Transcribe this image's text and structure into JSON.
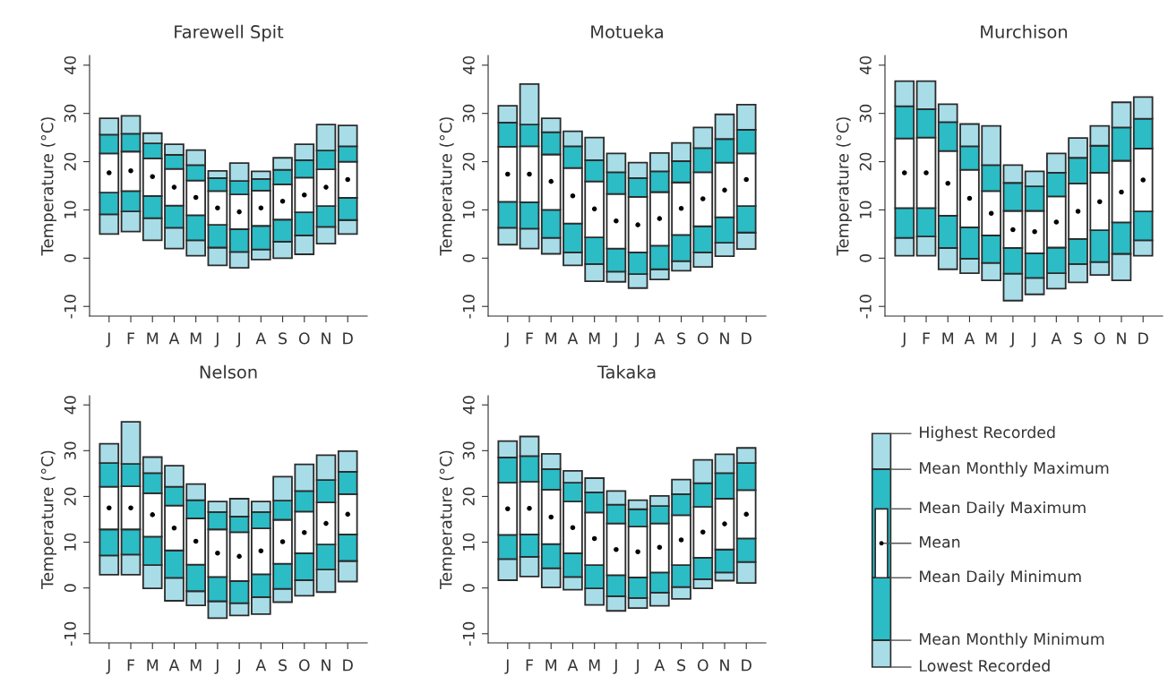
{
  "chart_data": [
    {
      "type": "bar",
      "title": "Farewell Spit",
      "ylabel": "Temperature (°C)",
      "categories": [
        "J",
        "F",
        "M",
        "A",
        "M",
        "J",
        "J",
        "A",
        "S",
        "O",
        "N",
        "D"
      ],
      "ylim": [
        -12,
        42
      ],
      "yticks": [
        -10,
        0,
        10,
        20,
        30,
        40
      ],
      "grid": false,
      "series": [
        {
          "color": "#a8dde8",
          "base": [
            5.0,
            5.5,
            3.7,
            2.0,
            0.5,
            -1.5,
            -2.0,
            -0.3,
            0.0,
            0.8,
            3.0,
            5.0
          ],
          "values": [
            4.1,
            4.2,
            4.6,
            4.3,
            3.2,
            3.7,
            3.3,
            2.1,
            3.4,
            3.9,
            3.5,
            2.9
          ]
        },
        {
          "color": "#2bbcc6",
          "base": [
            9.1,
            9.7,
            8.3,
            6.3,
            3.7,
            2.2,
            1.3,
            1.8,
            3.4,
            4.7,
            6.5,
            7.9
          ],
          "values": [
            4.5,
            4.2,
            4.6,
            4.6,
            5.2,
            4.7,
            4.7,
            4.9,
            4.6,
            4.8,
            4.3,
            4.6
          ]
        },
        {
          "color": "#ffffff",
          "base": [
            13.6,
            13.9,
            12.9,
            10.9,
            8.9,
            6.9,
            6.0,
            6.7,
            8.0,
            9.5,
            10.8,
            12.5
          ],
          "values": [
            8.1,
            8.2,
            7.8,
            7.6,
            7.2,
            7.0,
            7.2,
            7.3,
            7.3,
            7.2,
            7.6,
            7.5
          ]
        },
        {
          "color": "#2bbcc6",
          "base": [
            21.7,
            22.1,
            20.7,
            18.5,
            16.1,
            13.9,
            13.2,
            14.0,
            15.3,
            16.7,
            18.4,
            20.0
          ],
          "values": [
            3.9,
            3.7,
            3.1,
            2.9,
            3.2,
            2.7,
            2.8,
            2.4,
            3.0,
            3.6,
            3.9,
            3.2
          ]
        },
        {
          "color": "#a8dde8",
          "base": [
            25.6,
            25.8,
            23.8,
            21.4,
            19.3,
            16.6,
            16.0,
            16.4,
            18.3,
            20.3,
            22.3,
            23.2
          ],
          "values": [
            3.4,
            3.7,
            2.1,
            2.2,
            3.1,
            1.5,
            3.7,
            1.6,
            2.5,
            3.3,
            5.4,
            4.3
          ]
        },
        {
          "type": "scatter",
          "marker": "circle",
          "color": "#000000",
          "values": [
            17.7,
            18.1,
            16.9,
            14.7,
            12.6,
            10.4,
            9.6,
            10.4,
            11.8,
            13.1,
            14.7,
            16.3
          ]
        }
      ]
    },
    {
      "type": "bar",
      "title": "Motueka",
      "ylabel": "Temperature (°C)",
      "categories": [
        "J",
        "F",
        "M",
        "A",
        "M",
        "J",
        "J",
        "A",
        "S",
        "O",
        "N",
        "D"
      ],
      "ylim": [
        -12,
        42
      ],
      "yticks": [
        -10,
        0,
        10,
        20,
        30,
        40
      ],
      "grid": false,
      "series": [
        {
          "color": "#a8dde8",
          "base": [
            2.8,
            2.0,
            0.9,
            -1.5,
            -4.8,
            -4.9,
            -6.2,
            -4.4,
            -2.6,
            -1.8,
            0.4,
            1.9
          ],
          "values": [
            3.5,
            4.1,
            3.3,
            2.7,
            3.6,
            2.1,
            2.9,
            2.1,
            2.0,
            3.0,
            2.8,
            3.4
          ]
        },
        {
          "color": "#2bbcc6",
          "base": [
            6.3,
            6.1,
            4.2,
            1.2,
            -1.2,
            -2.8,
            -3.3,
            -2.3,
            -0.6,
            1.2,
            3.2,
            5.3
          ],
          "values": [
            5.4,
            5.5,
            5.8,
            6.0,
            5.5,
            4.8,
            4.5,
            4.9,
            5.4,
            5.4,
            5.3,
            5.5
          ]
        },
        {
          "color": "#ffffff",
          "base": [
            11.7,
            11.6,
            10.0,
            7.2,
            4.3,
            2.0,
            1.2,
            2.6,
            4.8,
            6.6,
            8.5,
            10.8
          ],
          "values": [
            11.4,
            11.6,
            11.5,
            11.5,
            11.6,
            11.3,
            11.5,
            11.1,
            10.9,
            11.2,
            11.3,
            10.9
          ]
        },
        {
          "color": "#2bbcc6",
          "base": [
            23.1,
            23.2,
            21.5,
            18.7,
            15.9,
            13.3,
            12.7,
            13.7,
            15.7,
            17.8,
            19.8,
            21.7
          ],
          "values": [
            5.0,
            4.5,
            4.6,
            4.5,
            4.4,
            4.5,
            3.9,
            4.3,
            4.4,
            5.0,
            4.9,
            4.9
          ]
        },
        {
          "color": "#a8dde8",
          "base": [
            28.1,
            27.7,
            26.1,
            23.2,
            20.3,
            17.8,
            16.6,
            18.0,
            20.1,
            22.8,
            24.7,
            26.6
          ],
          "values": [
            3.5,
            8.4,
            2.9,
            3.1,
            4.7,
            3.9,
            3.2,
            3.8,
            3.8,
            4.3,
            5.1,
            5.2
          ]
        },
        {
          "type": "scatter",
          "marker": "circle",
          "color": "#000000",
          "values": [
            17.4,
            17.4,
            15.9,
            12.9,
            10.2,
            7.7,
            6.9,
            8.2,
            10.3,
            12.3,
            14.1,
            16.3
          ]
        }
      ]
    },
    {
      "type": "bar",
      "title": "Murchison",
      "ylabel": "Temperature (°C)",
      "categories": [
        "J",
        "F",
        "M",
        "A",
        "M",
        "J",
        "J",
        "A",
        "S",
        "O",
        "N",
        "D"
      ],
      "ylim": [
        -12,
        42
      ],
      "yticks": [
        -10,
        0,
        10,
        20,
        30,
        40
      ],
      "grid": false,
      "series": [
        {
          "color": "#a8dde8",
          "base": [
            0.5,
            0.5,
            -2.3,
            -3.1,
            -4.6,
            -8.8,
            -7.5,
            -6.3,
            -5.0,
            -3.5,
            -4.6,
            0.5
          ],
          "values": [
            3.7,
            4.0,
            4.4,
            3.0,
            3.6,
            5.6,
            3.4,
            3.2,
            3.8,
            2.7,
            5.5,
            3.2
          ]
        },
        {
          "color": "#2bbcc6",
          "base": [
            4.2,
            4.5,
            2.1,
            -0.1,
            -1.0,
            -3.2,
            -4.1,
            -3.1,
            -1.2,
            -0.8,
            0.9,
            3.7
          ],
          "values": [
            6.2,
            5.9,
            6.7,
            6.5,
            5.7,
            5.3,
            5.1,
            5.3,
            5.2,
            6.6,
            6.5,
            6.0
          ]
        },
        {
          "color": "#ffffff",
          "base": [
            10.4,
            10.4,
            8.8,
            6.4,
            4.7,
            2.1,
            1.0,
            2.2,
            4.0,
            5.8,
            7.4,
            9.7
          ],
          "values": [
            14.4,
            14.6,
            13.4,
            11.9,
            9.2,
            7.7,
            8.8,
            10.6,
            11.5,
            11.9,
            12.8,
            13.0
          ]
        },
        {
          "color": "#2bbcc6",
          "base": [
            24.8,
            25.0,
            22.2,
            18.3,
            13.9,
            9.8,
            9.8,
            12.8,
            15.5,
            17.7,
            20.2,
            22.7
          ],
          "values": [
            6.7,
            5.9,
            6.0,
            4.9,
            5.4,
            5.8,
            5.1,
            4.9,
            5.3,
            5.6,
            6.9,
            6.2
          ]
        },
        {
          "color": "#a8dde8",
          "base": [
            31.5,
            30.9,
            28.2,
            23.2,
            19.3,
            15.6,
            14.9,
            17.7,
            20.8,
            23.3,
            27.1,
            28.9
          ],
          "values": [
            5.2,
            5.8,
            3.7,
            4.6,
            8.1,
            3.7,
            3.1,
            4.0,
            4.1,
            4.1,
            5.2,
            4.5
          ]
        },
        {
          "type": "scatter",
          "marker": "circle",
          "color": "#000000",
          "values": [
            17.7,
            17.7,
            15.5,
            12.4,
            9.3,
            5.9,
            5.5,
            7.5,
            9.7,
            11.7,
            13.7,
            16.2
          ]
        }
      ]
    },
    {
      "type": "bar",
      "title": "Nelson",
      "ylabel": "Temperature (°C)",
      "categories": [
        "J",
        "F",
        "M",
        "A",
        "M",
        "J",
        "J",
        "A",
        "S",
        "O",
        "N",
        "D"
      ],
      "ylim": [
        -12,
        42
      ],
      "yticks": [
        -10,
        0,
        10,
        20,
        30,
        40
      ],
      "grid": false,
      "series": [
        {
          "color": "#a8dde8",
          "base": [
            2.9,
            2.9,
            -0.1,
            -2.8,
            -3.8,
            -6.6,
            -6.0,
            -5.7,
            -3.1,
            -1.7,
            -0.9,
            1.4
          ],
          "values": [
            4.2,
            4.4,
            5.1,
            5.0,
            3.1,
            3.7,
            2.7,
            3.7,
            2.9,
            3.4,
            4.9,
            4.5
          ]
        },
        {
          "color": "#2bbcc6",
          "base": [
            7.1,
            7.3,
            5.0,
            2.2,
            -0.7,
            -2.9,
            -3.3,
            -2.0,
            -0.2,
            1.7,
            4.0,
            5.9
          ],
          "values": [
            5.7,
            5.5,
            6.2,
            6.0,
            5.8,
            5.3,
            4.8,
            5.0,
            5.5,
            5.9,
            5.5,
            5.8
          ]
        },
        {
          "color": "#ffffff",
          "base": [
            12.8,
            12.8,
            11.2,
            8.2,
            5.1,
            2.4,
            1.5,
            3.0,
            5.3,
            7.6,
            9.5,
            11.7
          ],
          "values": [
            9.3,
            9.4,
            9.5,
            9.8,
            10.1,
            10.4,
            10.7,
            10.0,
            9.6,
            9.1,
            9.2,
            8.8
          ]
        },
        {
          "color": "#2bbcc6",
          "base": [
            22.1,
            22.2,
            20.7,
            18.0,
            15.2,
            12.8,
            12.2,
            13.0,
            14.9,
            16.7,
            18.7,
            20.5
          ],
          "values": [
            5.2,
            4.9,
            4.4,
            4.1,
            4.0,
            3.8,
            3.4,
            3.6,
            4.2,
            4.5,
            4.9,
            4.9
          ]
        },
        {
          "color": "#a8dde8",
          "base": [
            27.3,
            27.1,
            25.1,
            22.1,
            19.2,
            16.6,
            15.6,
            16.6,
            19.1,
            21.2,
            23.6,
            25.4
          ],
          "values": [
            4.2,
            9.2,
            3.5,
            4.6,
            3.5,
            2.3,
            3.9,
            2.3,
            5.2,
            5.8,
            5.4,
            4.5
          ]
        },
        {
          "type": "scatter",
          "marker": "circle",
          "color": "#000000",
          "values": [
            17.5,
            17.5,
            16.0,
            13.1,
            10.2,
            7.6,
            6.9,
            8.1,
            10.1,
            12.1,
            14.1,
            16.1
          ]
        }
      ]
    },
    {
      "type": "bar",
      "title": "Takaka",
      "ylabel": "Temperature (°C)",
      "categories": [
        "J",
        "F",
        "M",
        "A",
        "M",
        "J",
        "J",
        "A",
        "S",
        "O",
        "N",
        "D"
      ],
      "ylim": [
        -12,
        42
      ],
      "yticks": [
        -10,
        0,
        10,
        20,
        30,
        40
      ],
      "grid": false,
      "series": [
        {
          "color": "#a8dde8",
          "base": [
            1.7,
            2.5,
            0.1,
            -0.4,
            -3.7,
            -5.0,
            -4.4,
            -3.9,
            -2.4,
            -0.1,
            1.6,
            1.1
          ],
          "values": [
            4.6,
            4.3,
            4.2,
            2.8,
            3.6,
            3.2,
            2.2,
            2.9,
            2.6,
            2.0,
            1.8,
            4.6
          ]
        },
        {
          "color": "#2bbcc6",
          "base": [
            6.3,
            6.8,
            4.3,
            2.4,
            -0.1,
            -1.8,
            -2.2,
            -1.0,
            0.2,
            1.9,
            3.4,
            5.7
          ],
          "values": [
            5.3,
            4.9,
            5.3,
            5.2,
            5.1,
            4.6,
            4.5,
            4.4,
            4.8,
            4.7,
            5.0,
            5.1
          ]
        },
        {
          "color": "#ffffff",
          "base": [
            11.6,
            11.7,
            9.6,
            7.6,
            5.0,
            2.8,
            2.3,
            3.4,
            5.0,
            6.6,
            8.4,
            10.8
          ],
          "values": [
            11.4,
            11.5,
            11.9,
            11.3,
            11.5,
            11.3,
            11.1,
            10.7,
            10.9,
            11.1,
            11.1,
            10.6
          ]
        },
        {
          "color": "#2bbcc6",
          "base": [
            23.0,
            23.2,
            21.5,
            18.9,
            16.5,
            14.1,
            13.4,
            14.1,
            15.9,
            17.7,
            19.5,
            21.4
          ],
          "values": [
            5.5,
            5.6,
            4.5,
            4.1,
            4.4,
            4.1,
            3.8,
            3.8,
            4.6,
            5.2,
            5.6,
            5.9
          ]
        },
        {
          "color": "#a8dde8",
          "base": [
            28.5,
            28.8,
            26.0,
            23.0,
            20.9,
            18.2,
            17.2,
            17.9,
            20.5,
            22.9,
            25.1,
            27.3
          ],
          "values": [
            3.6,
            4.3,
            3.3,
            2.6,
            3.1,
            3.0,
            2.0,
            2.2,
            3.2,
            5.1,
            4.1,
            3.3
          ]
        },
        {
          "type": "scatter",
          "marker": "circle",
          "color": "#000000",
          "values": [
            17.3,
            17.4,
            15.5,
            13.2,
            10.8,
            8.4,
            7.9,
            8.9,
            10.5,
            12.2,
            14.0,
            16.1
          ]
        }
      ]
    },
    {
      "type": "other",
      "annotations": [
        "Highest Recorded",
        "Mean Monthly Maximum",
        "Mean Daily Maximum",
        "Mean",
        "Mean Daily Minimum",
        "Mean Monthly Minimum",
        "Lowest Recorded"
      ]
    }
  ]
}
